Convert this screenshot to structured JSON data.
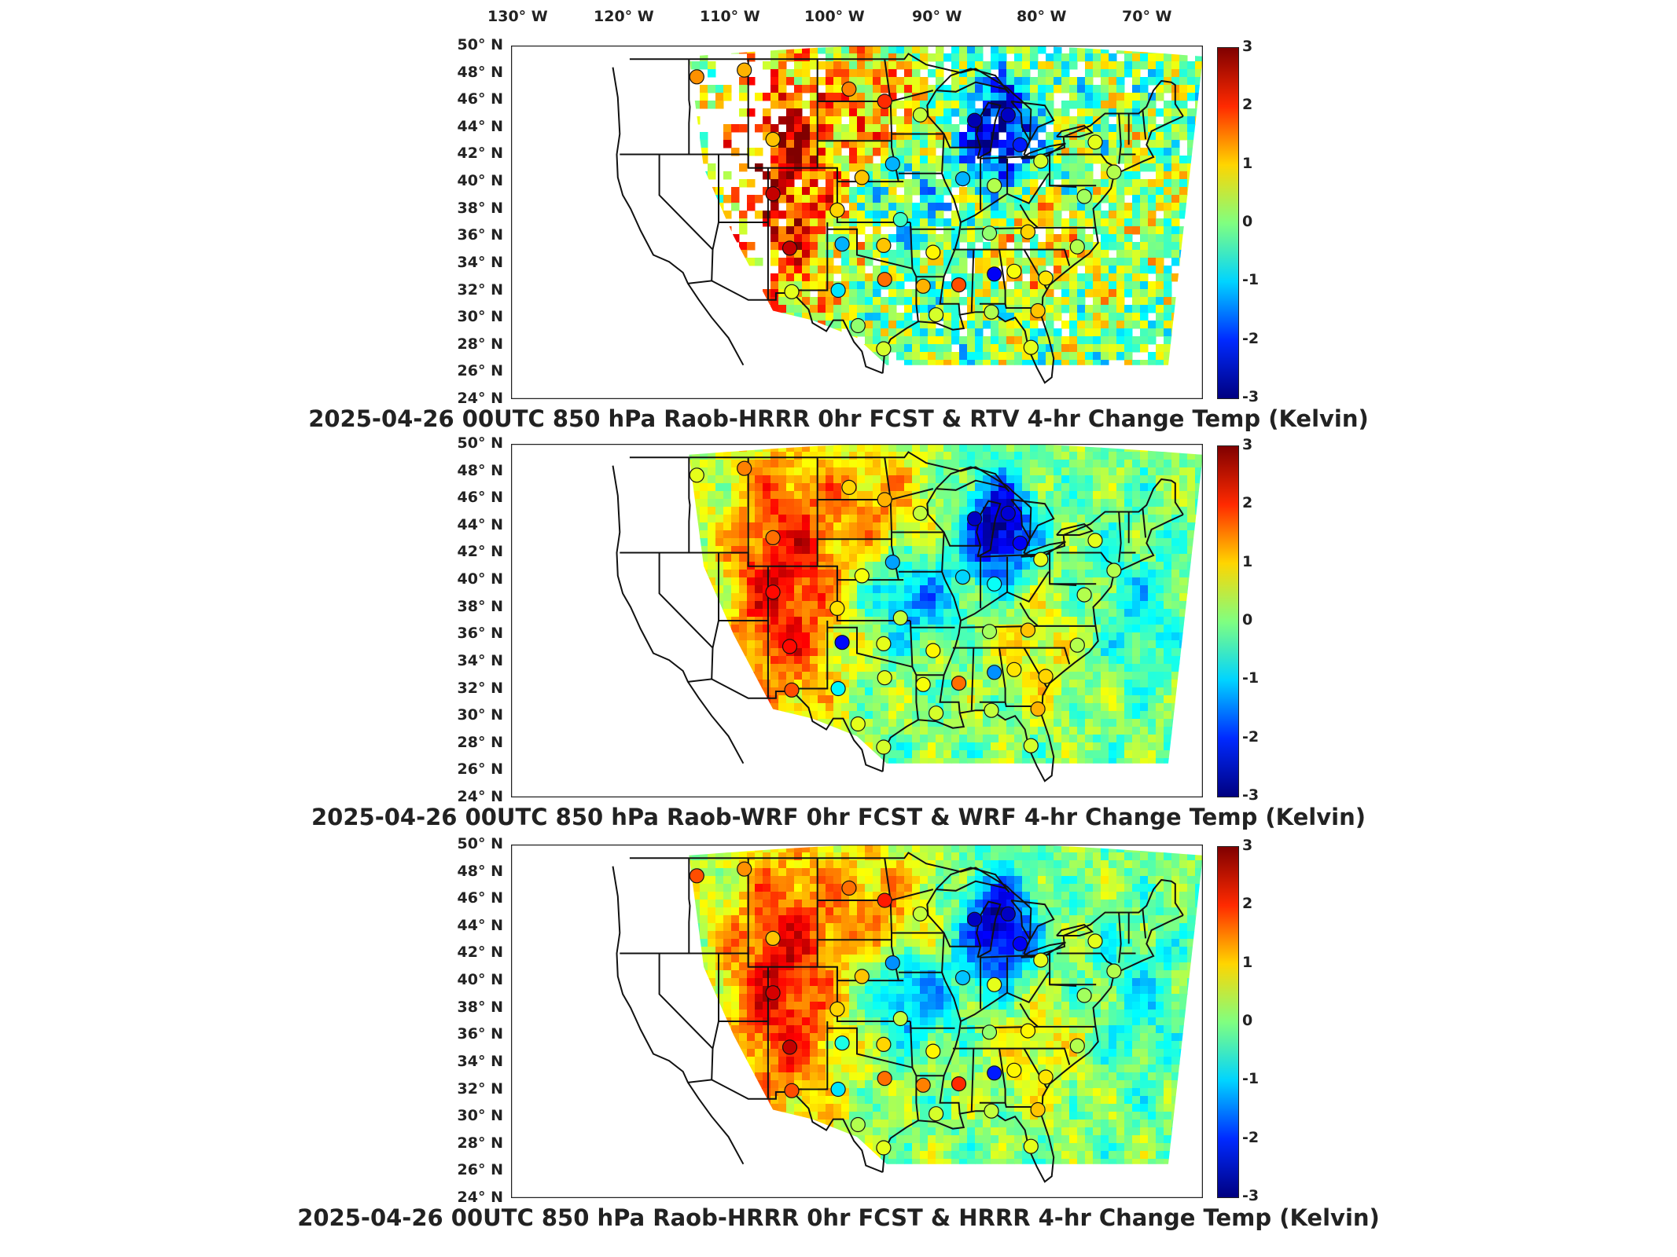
{
  "lon_labels": [
    "130° W",
    "120° W",
    "110° W",
    "100° W",
    "90° W",
    "80° W",
    "70° W"
  ],
  "lat_labels": [
    "50° N",
    "48° N",
    "46° N",
    "44° N",
    "42° N",
    "40° N",
    "38° N",
    "36° N",
    "34° N",
    "32° N",
    "30° N",
    "28° N",
    "26° N",
    "24° N"
  ],
  "colorbar": {
    "ticks": [
      "3",
      "2",
      "1",
      "0",
      "-1",
      "-2",
      "-3"
    ],
    "range": [
      -3,
      3
    ],
    "colormap": "jet"
  },
  "panels": [
    {
      "title": "2025-04-26 00UTC 850 hPa Raob-HRRR 0hr FCST & RTV 4-hr Change Temp (Kelvin)"
    },
    {
      "title": "2025-04-26 00UTC 850 hPa Raob-WRF 0hr FCST & WRF 4-hr Change Temp (Kelvin)"
    },
    {
      "title": "2025-04-26 00UTC 850 hPa Raob-HRRR 0hr FCST & HRRR 4-hr Change Temp (Kelvin)"
    }
  ],
  "raob_stations": [
    {
      "lon": -116.2,
      "lat": 47.7,
      "v": [
        1.4,
        0.6,
        1.8
      ]
    },
    {
      "lon": -111.4,
      "lat": 48.2,
      "v": [
        1.2,
        1.5,
        1.4
      ]
    },
    {
      "lon": -100.8,
      "lat": 46.8,
      "v": [
        1.5,
        1.0,
        1.6
      ]
    },
    {
      "lon": -97.2,
      "lat": 45.9,
      "v": [
        2.0,
        1.2,
        2.1
      ]
    },
    {
      "lon": -93.6,
      "lat": 44.9,
      "v": [
        0.4,
        0.4,
        0.4
      ]
    },
    {
      "lon": -88.1,
      "lat": 44.5,
      "v": [
        -2.7,
        -2.6,
        -2.6
      ]
    },
    {
      "lon": -84.7,
      "lat": 44.9,
      "v": [
        -2.6,
        -2.5,
        -2.6
      ]
    },
    {
      "lon": -83.5,
      "lat": 42.7,
      "v": [
        -2.1,
        -2.3,
        -2.3
      ]
    },
    {
      "lon": -108.5,
      "lat": 43.1,
      "v": [
        1.1,
        1.6,
        1.1
      ]
    },
    {
      "lon": -96.4,
      "lat": 41.3,
      "v": [
        -1.2,
        -1.3,
        -1.4
      ]
    },
    {
      "lon": -89.3,
      "lat": 40.2,
      "v": [
        -1.2,
        -1.0,
        -1.1
      ]
    },
    {
      "lon": -86.1,
      "lat": 39.7,
      "v": [
        0.3,
        -0.7,
        0.6
      ]
    },
    {
      "lon": -81.4,
      "lat": 41.5,
      "v": [
        0.5,
        0.6,
        0.6
      ]
    },
    {
      "lon": -75.9,
      "lat": 42.9,
      "v": [
        0.6,
        0.6,
        0.6
      ]
    },
    {
      "lon": -108.5,
      "lat": 39.1,
      "v": [
        2.6,
        2.2,
        2.5
      ]
    },
    {
      "lon": -99.5,
      "lat": 40.3,
      "v": [
        1.1,
        0.7,
        1.1
      ]
    },
    {
      "lon": -102.0,
      "lat": 37.9,
      "v": [
        1.0,
        0.9,
        1.0
      ]
    },
    {
      "lon": -95.6,
      "lat": 37.2,
      "v": [
        -0.4,
        0.4,
        0.4
      ]
    },
    {
      "lon": -106.8,
      "lat": 35.1,
      "v": [
        2.6,
        2.2,
        2.6
      ]
    },
    {
      "lon": -101.5,
      "lat": 35.4,
      "v": [
        -1.2,
        -2.2,
        -0.6
      ]
    },
    {
      "lon": -97.3,
      "lat": 35.3,
      "v": [
        1.1,
        0.6,
        1.0
      ]
    },
    {
      "lon": -92.3,
      "lat": 34.8,
      "v": [
        0.8,
        0.8,
        0.8
      ]
    },
    {
      "lon": -86.6,
      "lat": 36.2,
      "v": [
        0.1,
        0.2,
        0.1
      ]
    },
    {
      "lon": -82.7,
      "lat": 36.3,
      "v": [
        1.0,
        1.1,
        0.8
      ]
    },
    {
      "lon": -77.7,
      "lat": 35.2,
      "v": [
        0.3,
        0.3,
        0.3
      ]
    },
    {
      "lon": -106.6,
      "lat": 31.9,
      "v": [
        0.6,
        1.8,
        1.8
      ]
    },
    {
      "lon": -101.9,
      "lat": 32.0,
      "v": [
        -0.9,
        -0.8,
        -0.9
      ]
    },
    {
      "lon": -97.2,
      "lat": 32.8,
      "v": [
        1.6,
        0.6,
        1.6
      ]
    },
    {
      "lon": -93.3,
      "lat": 32.3,
      "v": [
        1.2,
        0.7,
        1.5
      ]
    },
    {
      "lon": -89.7,
      "lat": 32.4,
      "v": [
        1.8,
        1.6,
        2.0
      ]
    },
    {
      "lon": -86.1,
      "lat": 33.2,
      "v": [
        -2.3,
        -1.4,
        -2.1
      ]
    },
    {
      "lon": -84.1,
      "lat": 33.4,
      "v": [
        0.7,
        0.9,
        0.8
      ]
    },
    {
      "lon": -80.9,
      "lat": 32.9,
      "v": [
        0.9,
        1.0,
        0.9
      ]
    },
    {
      "lon": -99.9,
      "lat": 29.4,
      "v": [
        0.1,
        0.6,
        0.3
      ]
    },
    {
      "lon": -97.3,
      "lat": 27.7,
      "v": [
        0.5,
        0.5,
        0.6
      ]
    },
    {
      "lon": -92.0,
      "lat": 30.2,
      "v": [
        0.5,
        0.5,
        0.5
      ]
    },
    {
      "lon": -86.4,
      "lat": 30.4,
      "v": [
        0.3,
        0.4,
        0.4
      ]
    },
    {
      "lon": -81.7,
      "lat": 30.5,
      "v": [
        1.1,
        1.2,
        1.1
      ]
    },
    {
      "lon": -82.4,
      "lat": 27.8,
      "v": [
        0.6,
        0.5,
        0.6
      ]
    },
    {
      "lon": -77.0,
      "lat": 38.9,
      "v": [
        0.2,
        0.3,
        0.2
      ]
    },
    {
      "lon": -74.0,
      "lat": 40.7,
      "v": [
        0.3,
        0.3,
        0.3
      ]
    }
  ]
}
